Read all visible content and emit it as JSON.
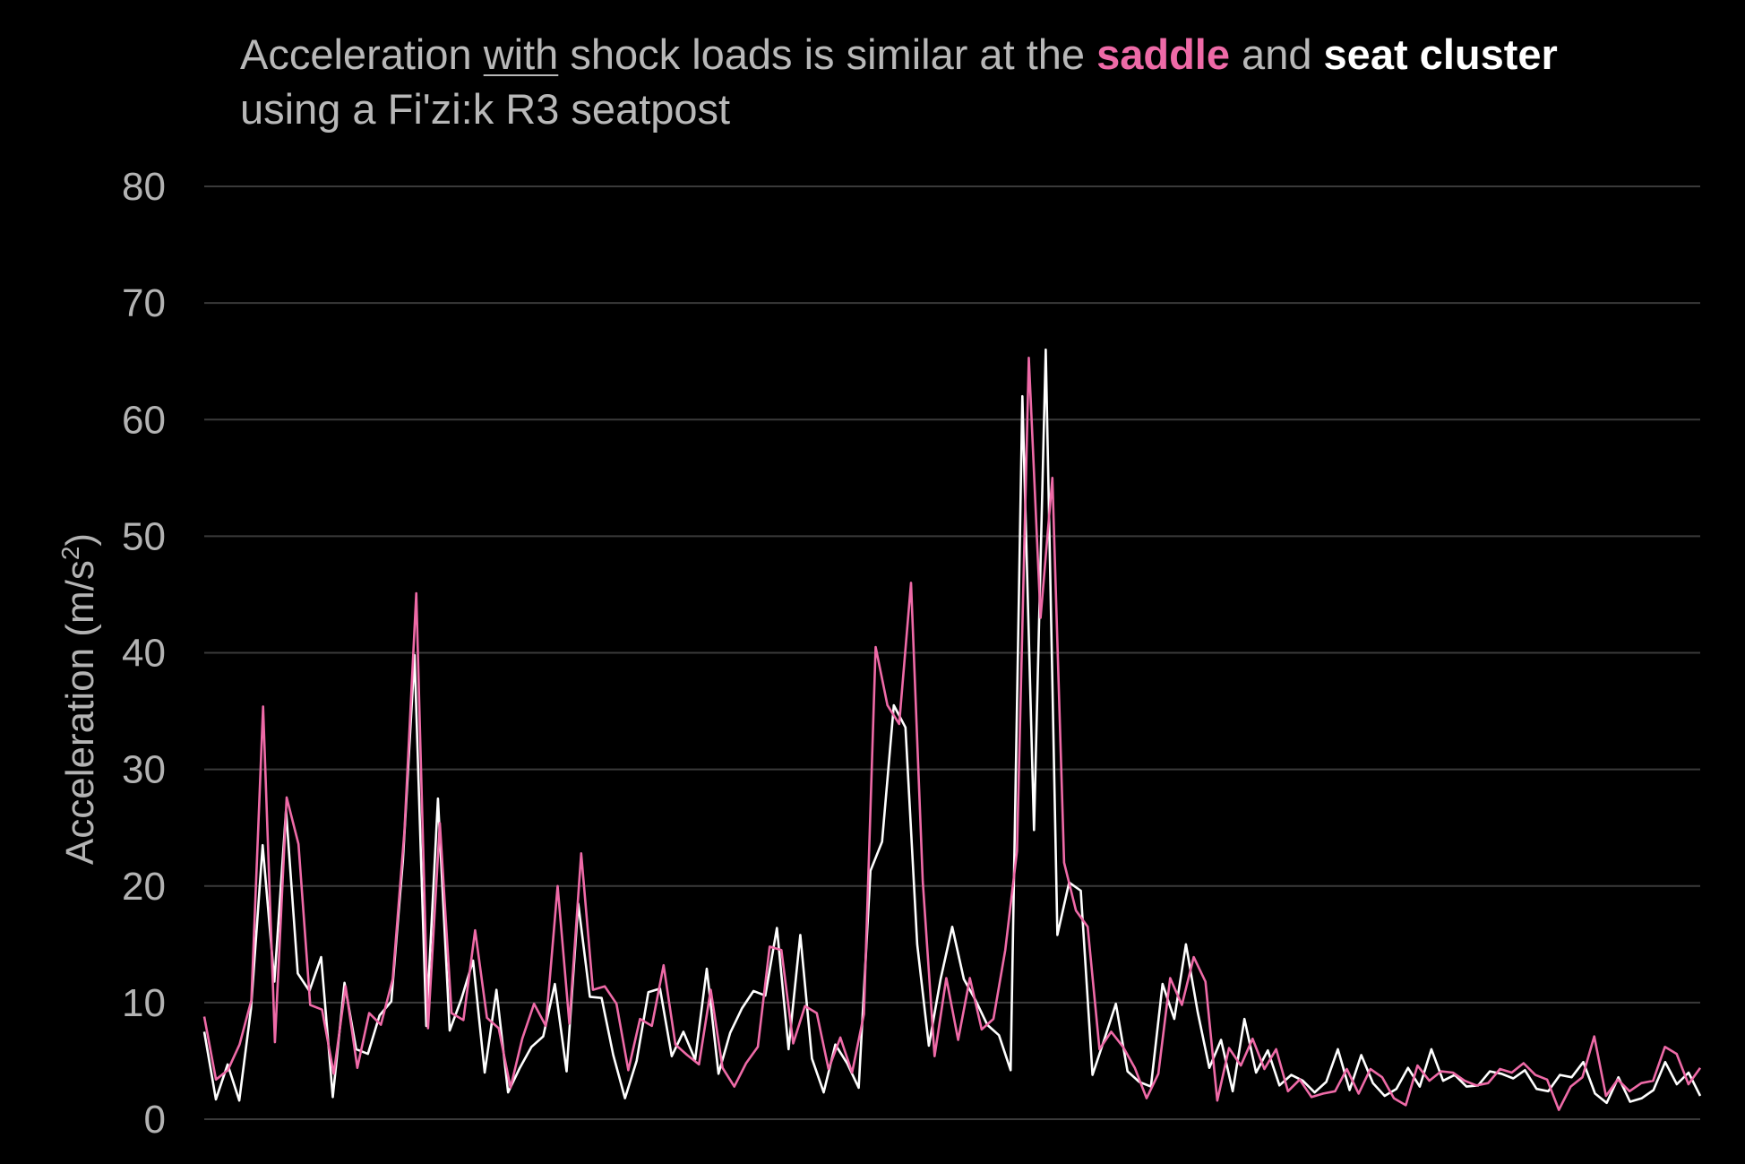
{
  "title": {
    "part1": "Acceleration ",
    "part2": "with",
    "part3": " shock loads is similar at the ",
    "part4": "saddle",
    "part5": " and  ",
    "part6": "seat cluster",
    "part7": " using a Fi'zi:k R3 seatpost"
  },
  "colors": {
    "background": "#000000",
    "saddle": "#ee6aa7",
    "seat_cluster": "#ffffff",
    "grid": "#3a3a3a",
    "text": "#b3b3b3"
  },
  "chart_data": {
    "type": "line",
    "ylabel": "Acceleration (m/s²)",
    "ylabel_parts": {
      "main": "Acceleration (m/s",
      "sup": "2",
      "end": ")"
    },
    "xlabel": "",
    "ylim": [
      0,
      80
    ],
    "yticks": [
      "0",
      "10",
      "20",
      "30",
      "40",
      "50",
      "60",
      "70",
      "80"
    ],
    "grid": "horizontal",
    "legend": "none (series identified by colored words in title)",
    "series": [
      {
        "name": "seat cluster",
        "color": "#ffffff",
        "values": [
          7.5,
          1.7,
          4.7,
          1.6,
          9.5,
          23.5,
          11.8,
          26.5,
          12.5,
          11.0,
          13.9,
          1.9,
          11.7,
          6.0,
          5.6,
          8.9,
          10.1,
          22.2,
          39.8,
          8.0,
          27.5,
          7.6,
          10.3,
          13.6,
          4.0,
          11.1,
          2.3,
          4.4,
          6.2,
          7.1,
          11.6,
          4.1,
          18.5,
          10.5,
          10.4,
          5.5,
          1.8,
          5.0,
          10.9,
          11.2,
          5.4,
          7.5,
          5.1,
          12.9,
          3.9,
          7.4,
          9.5,
          11.0,
          10.6,
          16.4,
          6.0,
          15.8,
          5.2,
          2.3,
          6.4,
          4.8,
          2.7,
          21.3,
          23.8,
          35.5,
          33.6,
          15.0,
          6.3,
          12.0,
          16.5,
          12.0,
          10.2,
          8.1,
          7.2,
          4.2,
          62.0,
          24.8,
          66.0,
          15.8,
          20.3,
          19.6,
          3.8,
          6.8,
          9.9,
          4.1,
          3.2,
          2.8,
          11.6,
          8.6,
          15.0,
          9.2,
          4.4,
          6.8,
          2.4,
          8.6,
          4.0,
          5.9,
          2.9,
          3.8,
          3.3,
          2.3,
          3.2,
          6.0,
          2.5,
          5.5,
          3.1,
          2.0,
          2.6,
          4.4,
          2.8,
          6.0,
          3.3,
          3.8,
          2.8,
          2.9,
          4.1,
          3.9,
          3.5,
          4.2,
          2.6,
          2.4,
          3.8,
          3.6,
          4.9,
          2.2,
          1.4,
          3.6,
          1.5,
          1.8,
          2.5,
          4.9,
          3.0,
          4.0,
          2.0
        ]
      },
      {
        "name": "saddle",
        "color": "#ee6aa7",
        "values": [
          8.8,
          3.4,
          4.2,
          6.4,
          10.2,
          35.4,
          6.6,
          27.6,
          23.6,
          9.8,
          9.4,
          3.9,
          11.4,
          4.4,
          9.1,
          8.1,
          12.0,
          24.7,
          45.1,
          7.8,
          25.4,
          9.1,
          8.5,
          16.2,
          8.7,
          7.8,
          2.7,
          6.9,
          9.9,
          8.0,
          20.0,
          8.2,
          22.8,
          11.1,
          11.4,
          9.9,
          4.2,
          8.6,
          8.0,
          13.2,
          6.4,
          5.5,
          4.7,
          11.1,
          4.4,
          2.8,
          4.8,
          6.2,
          14.8,
          14.5,
          6.5,
          9.7,
          9.1,
          4.3,
          7.0,
          4.0,
          9.0,
          40.5,
          35.5,
          33.9,
          46.0,
          20.4,
          5.4,
          12.1,
          6.8,
          12.1,
          7.7,
          8.6,
          14.5,
          23.0,
          65.3,
          43.0,
          55.0,
          22.0,
          17.9,
          16.5,
          6.0,
          7.5,
          6.2,
          4.4,
          1.8,
          3.9,
          12.1,
          9.8,
          13.9,
          11.8,
          1.6,
          6.1,
          4.6,
          6.9,
          4.3,
          6.0,
          2.4,
          3.4,
          1.9,
          2.2,
          2.4,
          4.3,
          2.2,
          4.3,
          3.6,
          1.8,
          1.2,
          4.6,
          3.3,
          4.1,
          4.0,
          3.3,
          2.9,
          3.1,
          4.3,
          4.0,
          4.8,
          3.8,
          3.4,
          0.8,
          2.8,
          3.6,
          7.1,
          2.0,
          3.4,
          2.4,
          3.1,
          3.3,
          6.2,
          5.6,
          3.0,
          4.4
        ]
      }
    ]
  }
}
